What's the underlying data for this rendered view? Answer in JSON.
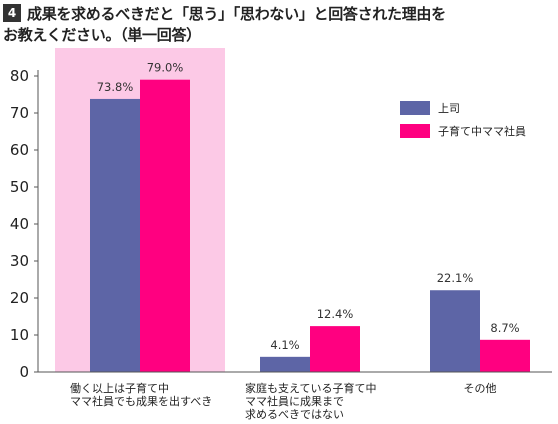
{
  "title": {
    "number": "4",
    "line1": "成果を求めるべきだと「思う」「思わない」と回答された理由を",
    "line2": "お教えください。（単一回答）"
  },
  "chart_data": {
    "type": "bar",
    "categories": [
      [
        "働く以上は子育て中",
        "ママ社員でも成果を出すべき"
      ],
      [
        "家庭も支えている子育て中",
        "ママ社員に成果まで",
        "求めるべきではない"
      ],
      [
        "その他"
      ]
    ],
    "series": [
      {
        "name": "上司",
        "values": [
          73.8,
          4.1,
          22.1
        ],
        "labels": [
          "73.8%",
          "4.1%",
          "22.1%"
        ],
        "color": "#5d65a6"
      },
      {
        "name": "子育て中ママ社員",
        "values": [
          79.0,
          12.4,
          8.7
        ],
        "labels": [
          "79.0%",
          "12.4%",
          "8.7%"
        ],
        "color": "#ff0080"
      }
    ],
    "ylim": [
      0,
      80
    ],
    "yticks": [
      "0",
      "10",
      "20",
      "30",
      "40",
      "50",
      "60",
      "70",
      "80"
    ],
    "highlight_category": 0,
    "highlight_color": "#fcc9e6",
    "legend_position": "top-right",
    "grid": false
  }
}
